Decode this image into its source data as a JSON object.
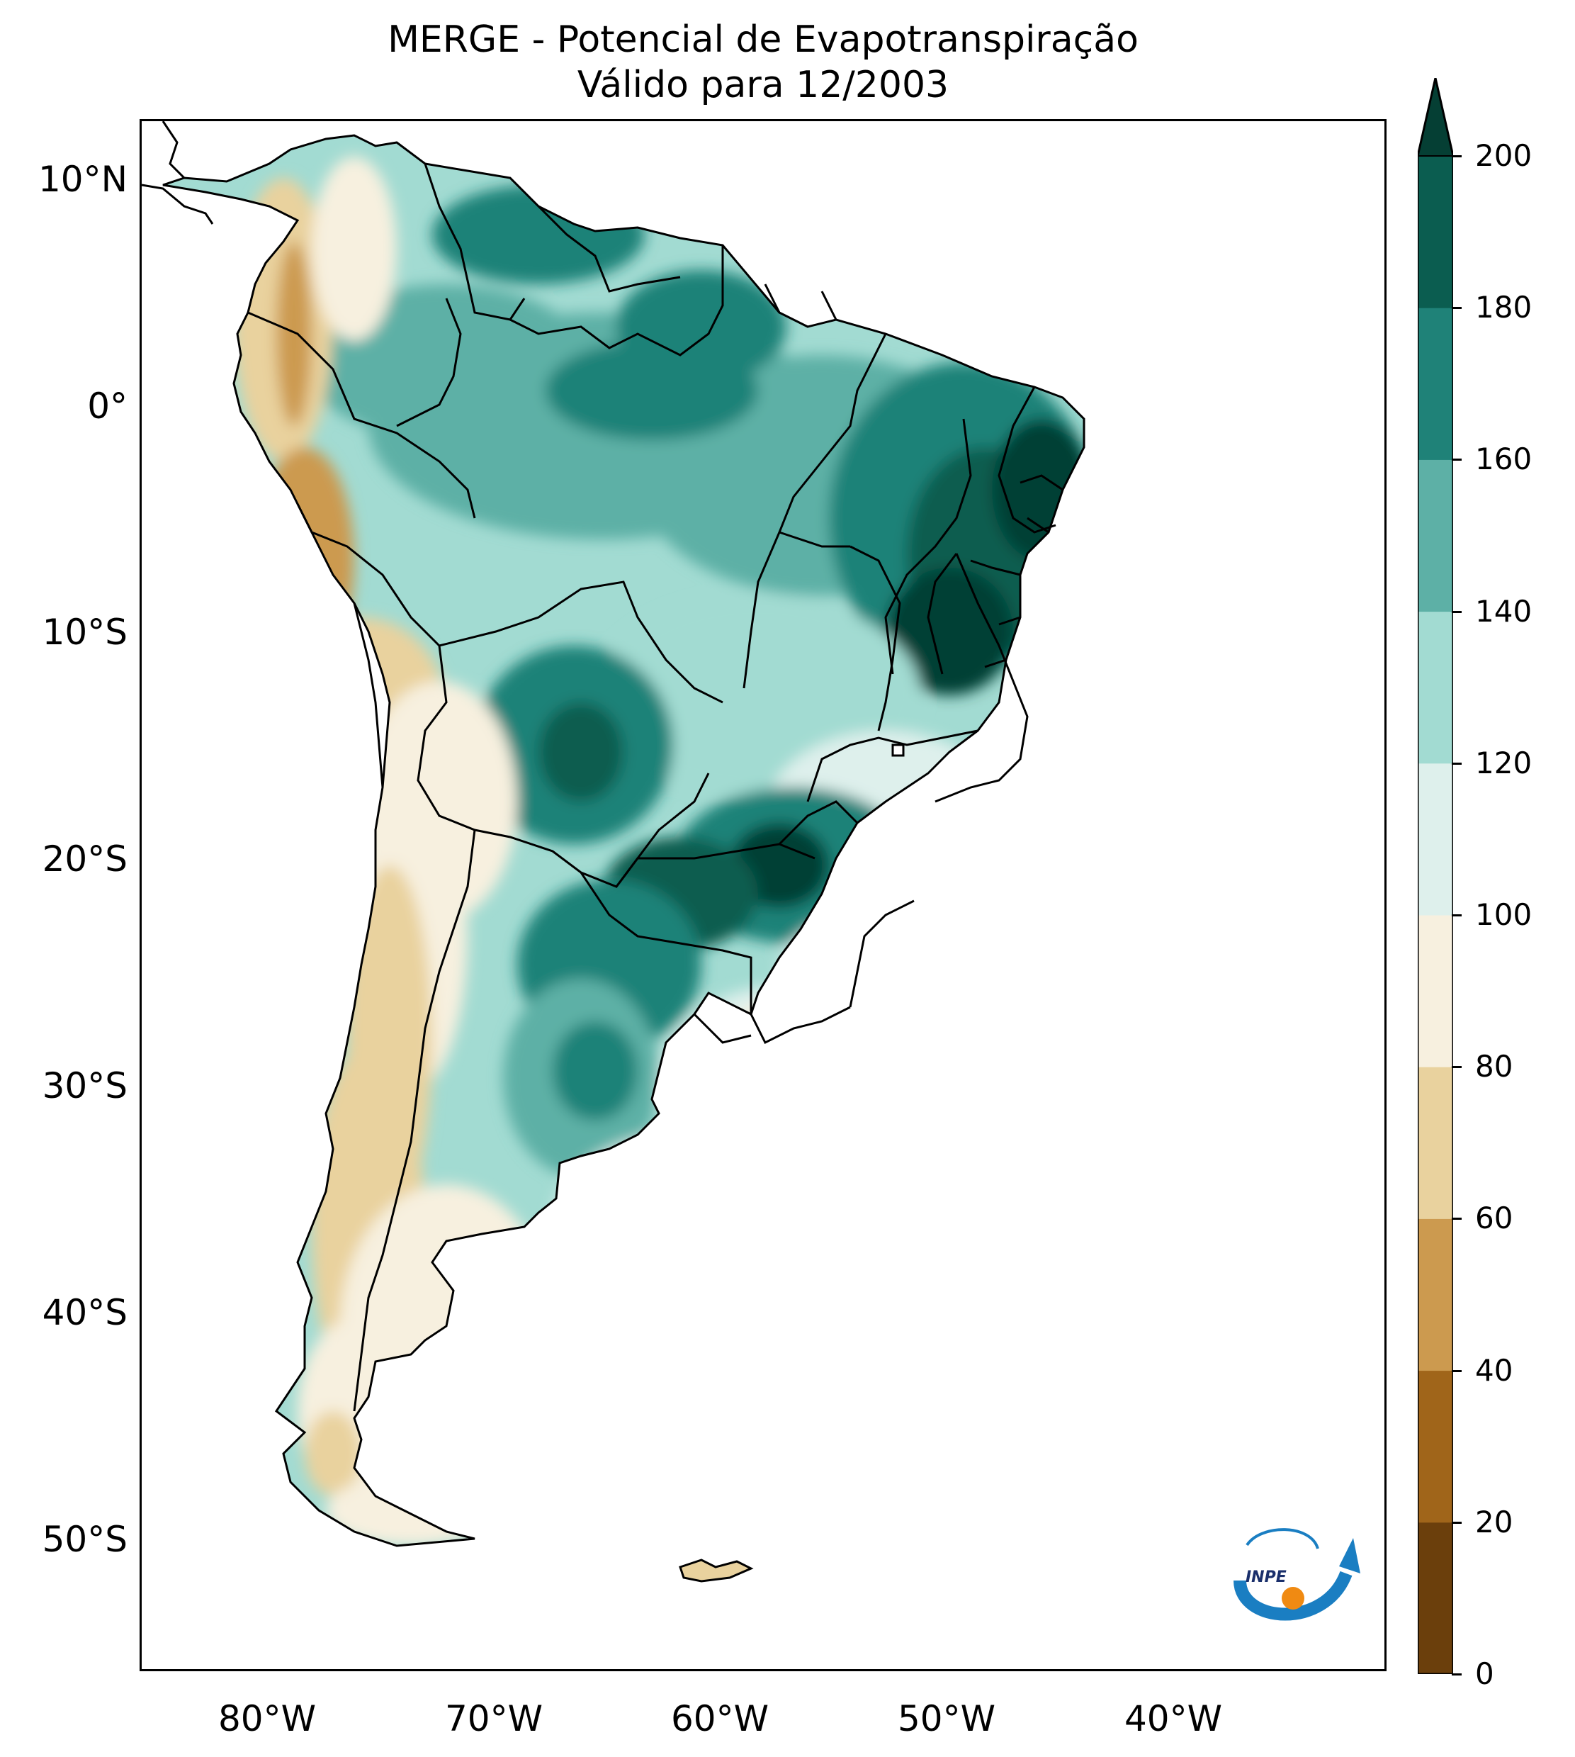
{
  "title": {
    "line1": "MERGE - Potencial de Evapotranspiração",
    "line2": "Válido para 12/2003"
  },
  "axes": {
    "lat_labels": [
      "10°N",
      "0°",
      "10°S",
      "20°S",
      "30°S",
      "40°S",
      "50°S"
    ],
    "lon_labels": [
      "80°W",
      "70°W",
      "60°W",
      "50°W",
      "40°W"
    ]
  },
  "colorbar": {
    "ticks": [
      "0",
      "20",
      "40",
      "60",
      "80",
      "100",
      "120",
      "140",
      "160",
      "180",
      "200"
    ],
    "colors": [
      "#6b3f0c",
      "#a0651a",
      "#cc9a4f",
      "#e9d29e",
      "#f7f0df",
      "#def0ec",
      "#a2dbd2",
      "#5db0a6",
      "#1f8278",
      "#0b5d50",
      "#053f34"
    ],
    "min": 0,
    "max": 200,
    "step": 20,
    "extend": "max"
  },
  "logo": {
    "text": "INPE"
  }
}
